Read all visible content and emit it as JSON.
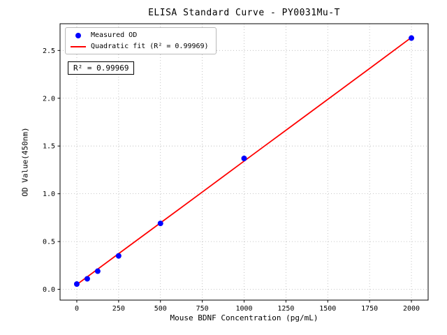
{
  "chart_data": {
    "type": "scatter",
    "title": "ELISA Standard Curve - PY0031Mu-T",
    "xlabel": "Mouse BDNF Concentration (pg/mL)",
    "ylabel": "OD Value(450nm)",
    "xlim": [
      -100,
      2100
    ],
    "ylim": [
      -0.113,
      2.78
    ],
    "xticks": [
      0,
      250,
      500,
      750,
      1000,
      1250,
      1500,
      1750,
      2000
    ],
    "xtick_labels": [
      "0",
      "250",
      "500",
      "750",
      "1000",
      "1250",
      "1500",
      "1750",
      "2000"
    ],
    "yticks": [
      0.0,
      0.5,
      1.0,
      1.5,
      2.0,
      2.5
    ],
    "ytick_labels": [
      "0.0",
      "0.5",
      "1.0",
      "1.5",
      "2.0",
      "2.5"
    ],
    "grid": "dotted",
    "legend": {
      "position": "upper-left",
      "entries": [
        {
          "label": "Measured OD",
          "marker": "dot",
          "color": "#0000ff"
        },
        {
          "label": "Quadratic fit (R² = 0.99969)",
          "marker": "line",
          "color": "#ff0000"
        }
      ]
    },
    "annotation": "R² = 0.99969",
    "r_squared": 0.99969,
    "series": [
      {
        "name": "Measured OD",
        "type": "scatter",
        "color": "#0000ff",
        "points": [
          [
            0,
            0.055
          ],
          [
            62.5,
            0.11
          ],
          [
            125,
            0.19
          ],
          [
            250,
            0.35
          ],
          [
            500,
            0.69
          ],
          [
            1000,
            1.37
          ],
          [
            2000,
            2.63
          ]
        ]
      },
      {
        "name": "Quadratic fit",
        "type": "line",
        "color": "#ff0000",
        "points": [
          [
            0,
            0.05
          ],
          [
            250,
            0.373
          ],
          [
            500,
            0.695
          ],
          [
            750,
            1.018
          ],
          [
            1000,
            1.342
          ],
          [
            1250,
            1.665
          ],
          [
            1500,
            1.988
          ],
          [
            1750,
            2.312
          ],
          [
            2000,
            2.636
          ]
        ]
      }
    ]
  }
}
